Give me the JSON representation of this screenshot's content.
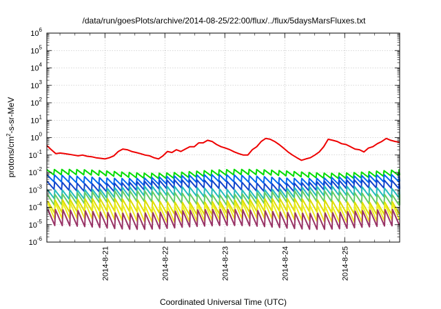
{
  "chart_data": {
    "type": "line",
    "title": "/data/run/goesPlots/archive/2014-08-25/22:00/flux/../flux/5daysMarsFluxes.txt",
    "xlabel": "Coordinated Universal Time (UTC)",
    "ylabel": {
      "base": "protons/cm",
      "sup": "2",
      "rest": "-s-sr-MeV"
    },
    "yscale": "log",
    "ylim_exponents": [
      -6,
      6
    ],
    "y_tick_exponents": [
      -6,
      -5,
      -4,
      -3,
      -2,
      -1,
      0,
      1,
      2,
      3,
      4,
      5,
      6
    ],
    "y_tick_base": "10",
    "xlim": [
      "2014-08-20 00:45",
      "2014-08-25 22:00"
    ],
    "x_ticks": [
      "2014-8-21",
      "2014-8-22",
      "2014-8-23",
      "2014-8-24",
      "2014-8-25"
    ],
    "grid": true,
    "legend": "none",
    "series": [
      {
        "color": "#ee0000",
        "points": [
          [
            0.0,
            0.35
          ],
          [
            0.2,
            0.2
          ],
          [
            0.4,
            0.12
          ],
          [
            0.6,
            0.13
          ],
          [
            0.8,
            0.12
          ],
          [
            1.0,
            0.11
          ],
          [
            1.2,
            0.1
          ],
          [
            1.4,
            0.09
          ],
          [
            1.6,
            0.1
          ],
          [
            1.8,
            0.085
          ],
          [
            2.0,
            0.08
          ],
          [
            2.2,
            0.07
          ],
          [
            2.4,
            0.065
          ],
          [
            2.6,
            0.06
          ],
          [
            2.8,
            0.07
          ],
          [
            3.0,
            0.09
          ],
          [
            3.2,
            0.16
          ],
          [
            3.4,
            0.22
          ],
          [
            3.6,
            0.2
          ],
          [
            3.8,
            0.16
          ],
          [
            4.0,
            0.14
          ],
          [
            4.2,
            0.12
          ],
          [
            4.4,
            0.1
          ],
          [
            4.6,
            0.09
          ],
          [
            4.8,
            0.07
          ],
          [
            5.0,
            0.06
          ],
          [
            5.2,
            0.09
          ],
          [
            5.4,
            0.16
          ],
          [
            5.6,
            0.14
          ],
          [
            5.8,
            0.2
          ],
          [
            6.0,
            0.16
          ],
          [
            6.2,
            0.22
          ],
          [
            6.4,
            0.3
          ],
          [
            6.6,
            0.3
          ],
          [
            6.8,
            0.5
          ],
          [
            7.0,
            0.5
          ],
          [
            7.2,
            0.7
          ],
          [
            7.4,
            0.6
          ],
          [
            7.6,
            0.4
          ],
          [
            7.8,
            0.3
          ],
          [
            8.0,
            0.25
          ],
          [
            8.2,
            0.2
          ],
          [
            8.4,
            0.15
          ],
          [
            8.6,
            0.12
          ],
          [
            8.8,
            0.1
          ],
          [
            9.0,
            0.1
          ],
          [
            9.2,
            0.2
          ],
          [
            9.4,
            0.3
          ],
          [
            9.6,
            0.6
          ],
          [
            9.8,
            0.9
          ],
          [
            10.0,
            0.8
          ],
          [
            10.2,
            0.6
          ],
          [
            10.4,
            0.4
          ],
          [
            10.6,
            0.25
          ],
          [
            10.8,
            0.15
          ],
          [
            11.0,
            0.1
          ],
          [
            11.2,
            0.07
          ],
          [
            11.4,
            0.05
          ],
          [
            11.6,
            0.06
          ],
          [
            11.8,
            0.07
          ],
          [
            12.0,
            0.1
          ],
          [
            12.2,
            0.15
          ],
          [
            12.4,
            0.3
          ],
          [
            12.6,
            0.8
          ],
          [
            12.8,
            0.7
          ],
          [
            13.0,
            0.6
          ],
          [
            13.2,
            0.45
          ],
          [
            13.4,
            0.4
          ],
          [
            13.6,
            0.3
          ],
          [
            13.8,
            0.22
          ],
          [
            14.0,
            0.2
          ],
          [
            14.2,
            0.15
          ],
          [
            14.4,
            0.25
          ],
          [
            14.6,
            0.3
          ],
          [
            14.8,
            0.45
          ],
          [
            15.0,
            0.6
          ],
          [
            15.2,
            0.9
          ],
          [
            15.4,
            0.7
          ],
          [
            15.6,
            0.6
          ],
          [
            15.8,
            0.55
          ]
        ]
      },
      {
        "color": "#00dd00",
        "level": 0.012,
        "ratio": 0.5,
        "phase": 0.0
      },
      {
        "color": "#0066ee",
        "level": 0.006,
        "ratio": 0.4,
        "phase": 0.02
      },
      {
        "color": "#1144cc",
        "level": 0.003,
        "ratio": 0.35,
        "phase": 0.04
      },
      {
        "color": "#22bbbb",
        "level": 0.0013,
        "ratio": 0.3,
        "phase": 0.06
      },
      {
        "color": "#66cc66",
        "level": 0.0007,
        "ratio": 0.25,
        "phase": 0.08
      },
      {
        "color": "#dddd00",
        "level": 0.00025,
        "ratio": 0.2,
        "phase": 0.1
      },
      {
        "color": "#eeee22",
        "level": 0.00015,
        "ratio": 0.12,
        "phase": 0.12
      },
      {
        "color": "#993366",
        "level": 6e-05,
        "ratio": 0.12,
        "phase": 0.14
      }
    ]
  }
}
